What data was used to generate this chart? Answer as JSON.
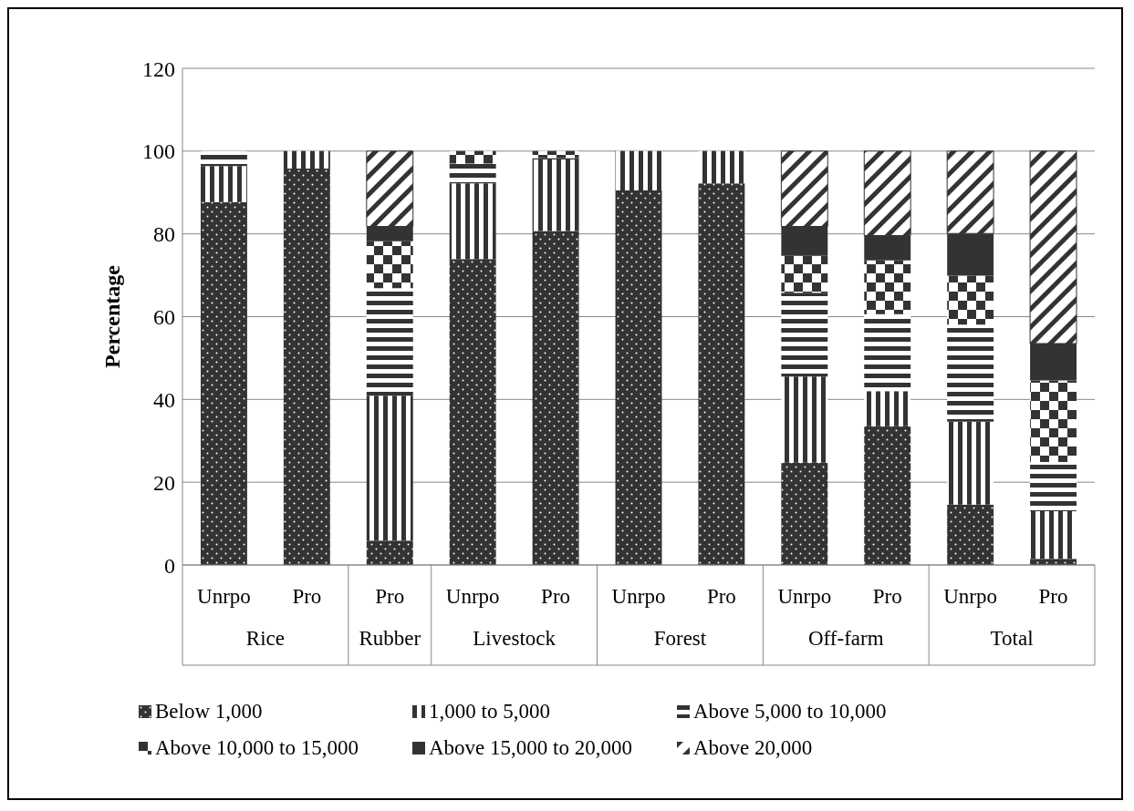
{
  "chart_data": {
    "type": "bar",
    "stacked": true,
    "ylabel": "Percentage",
    "categories": [
      "Unrpo",
      "Pro",
      "Pro",
      "Unrpo",
      "Pro",
      "Unrpo",
      "Pro",
      "Unrpo",
      "Pro",
      "Unrpo",
      "Pro"
    ],
    "annotations": [
      "Rice",
      "Rubber",
      "Livestock",
      "Forest",
      "Off-farm",
      "Total"
    ],
    "ylim": [
      0,
      120
    ],
    "yticks": [
      0,
      20,
      40,
      60,
      80,
      100,
      120
    ],
    "grid": "y",
    "legend": "bottom",
    "series": [
      {
        "name": "Below 1,000",
        "color": "#333333",
        "values": [
          87.7,
          95.8,
          5.9,
          73.9,
          80.7,
          90.5,
          92.2,
          24.7,
          33.5,
          14.6,
          1.5
        ]
      },
      {
        "name": "1,000 to 5,000",
        "color": "#333333",
        "values": [
          8.7,
          4.2,
          35.0,
          18.3,
          17.3,
          9.5,
          7.8,
          20.8,
          8.5,
          20.0,
          11.5
        ]
      },
      {
        "name": "Above 5,000 to 10,000",
        "color": "#333333",
        "values": [
          3.6,
          null,
          26.0,
          4.8,
          0.3,
          null,
          null,
          20.3,
          18.6,
          23.5,
          11.9
        ]
      },
      {
        "name": "Above 10,000 to 15,000",
        "color": "#333333",
        "values": [
          null,
          null,
          11.3,
          3.0,
          1.7,
          null,
          null,
          8.9,
          13.0,
          11.8,
          19.7
        ]
      },
      {
        "name": "Above 15,000 to 20,000",
        "color": "#333333",
        "values": [
          null,
          null,
          3.6,
          null,
          null,
          null,
          null,
          7.1,
          6.0,
          10.2,
          8.9
        ]
      },
      {
        "name": "Above 20,000",
        "color": "#333333",
        "values": [
          null,
          null,
          18.2,
          null,
          null,
          null,
          null,
          18.2,
          20.4,
          19.9,
          46.5
        ]
      }
    ]
  }
}
